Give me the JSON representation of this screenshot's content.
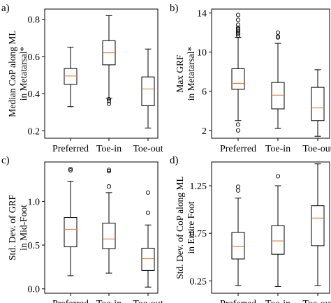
{
  "chart_data": [
    {
      "panel": "a)",
      "type": "box",
      "ylabel": [
        "Median CoP along ML",
        "in Metatarsal*"
      ],
      "ylim": [
        0.16,
        0.855
      ],
      "yticks": [
        0.2,
        0.4,
        0.6,
        0.8
      ],
      "ytick_labels": [
        "0.2",
        "0.4",
        "0.6",
        "0.8"
      ],
      "categories": [
        "Preferred",
        "Toe-in",
        "Toe-out"
      ],
      "boxes": [
        {
          "whislo": 0.33,
          "q1": 0.45,
          "med": 0.495,
          "q3": 0.535,
          "whishi": 0.65,
          "fliers": []
        },
        {
          "whislo": 0.375,
          "q1": 0.555,
          "med": 0.62,
          "q3": 0.685,
          "whishi": 0.82,
          "fliers": [
            0.345,
            0.36,
            0.37
          ]
        },
        {
          "whislo": 0.215,
          "q1": 0.335,
          "med": 0.425,
          "q3": 0.49,
          "whishi": 0.64,
          "fliers": []
        }
      ]
    },
    {
      "panel": "b)",
      "type": "box",
      "ylabel": [
        "Max GRF",
        "in Metatarsal*"
      ],
      "ylim": [
        1.2,
        14.4
      ],
      "yticks": [
        2,
        6,
        10,
        14
      ],
      "ytick_labels": [
        "2",
        "6",
        "10",
        "14"
      ],
      "categories": [
        "Preferred",
        "Toe-in",
        "Toe-out"
      ],
      "boxes": [
        {
          "whislo": 3.0,
          "q1": 6.2,
          "med": 6.8,
          "q3": 8.3,
          "whishi": 11.5,
          "fliers": [
            2.0,
            2.6,
            11.7,
            11.9,
            12.0,
            12.2,
            12.35,
            12.5,
            12.8,
            13.3,
            13.8
          ]
        },
        {
          "whislo": 2.2,
          "q1": 4.2,
          "med": 5.6,
          "q3": 6.9,
          "whishi": 10.9,
          "fliers": [
            11.5,
            11.6,
            12.0
          ]
        },
        {
          "whislo": 1.4,
          "q1": 3.0,
          "med": 4.3,
          "q3": 6.4,
          "whishi": 8.2,
          "fliers": []
        }
      ]
    },
    {
      "panel": "c)",
      "type": "box",
      "ylabel": [
        "Std. Dev. of GRF",
        "in Mid-Foot"
      ],
      "ylim": [
        -0.05,
        1.45
      ],
      "yticks": [
        0.0,
        0.5,
        1.0
      ],
      "ytick_labels": [
        "0.0",
        "0.5",
        "1.0"
      ],
      "categories": [
        "Preferred",
        "Toe-in",
        "Toe-out"
      ],
      "boxes": [
        {
          "whislo": 0.15,
          "q1": 0.48,
          "med": 0.68,
          "q3": 0.815,
          "whishi": 1.23,
          "fliers": [
            1.355,
            1.37
          ]
        },
        {
          "whislo": 0.18,
          "q1": 0.46,
          "med": 0.57,
          "q3": 0.75,
          "whishi": 1.1,
          "fliers": [
            1.17,
            1.345,
            1.36
          ]
        },
        {
          "whislo": 0.02,
          "q1": 0.21,
          "med": 0.345,
          "q3": 0.465,
          "whishi": 0.73,
          "fliers": [
            0.87,
            1.1
          ]
        }
      ]
    },
    {
      "panel": "d)",
      "type": "box",
      "ylabel": [
        "Std. Dev. of CoP along ML",
        "in Entire Foot"
      ],
      "ylim": [
        0.12,
        1.5
      ],
      "yticks": [
        0.25,
        0.75,
        1.25
      ],
      "ytick_labels": [
        "0.25",
        "0.75",
        "1.25"
      ],
      "categories": [
        "Preferred",
        "Toe-in",
        "Toe-out"
      ],
      "boxes": [
        {
          "whislo": 0.2,
          "q1": 0.48,
          "med": 0.61,
          "q3": 0.76,
          "whishi": 1.12,
          "fliers": [
            1.2,
            1.24
          ]
        },
        {
          "whislo": 0.19,
          "q1": 0.53,
          "med": 0.67,
          "q3": 0.83,
          "whishi": 1.25,
          "fliers": [
            1.35
          ]
        },
        {
          "whislo": 0.2,
          "q1": 0.62,
          "med": 0.91,
          "q3": 1.04,
          "whishi": 1.48,
          "fliers": []
        }
      ]
    }
  ],
  "colors": {
    "median": "#e8803a",
    "box": "#000000",
    "frame": "#000000"
  }
}
